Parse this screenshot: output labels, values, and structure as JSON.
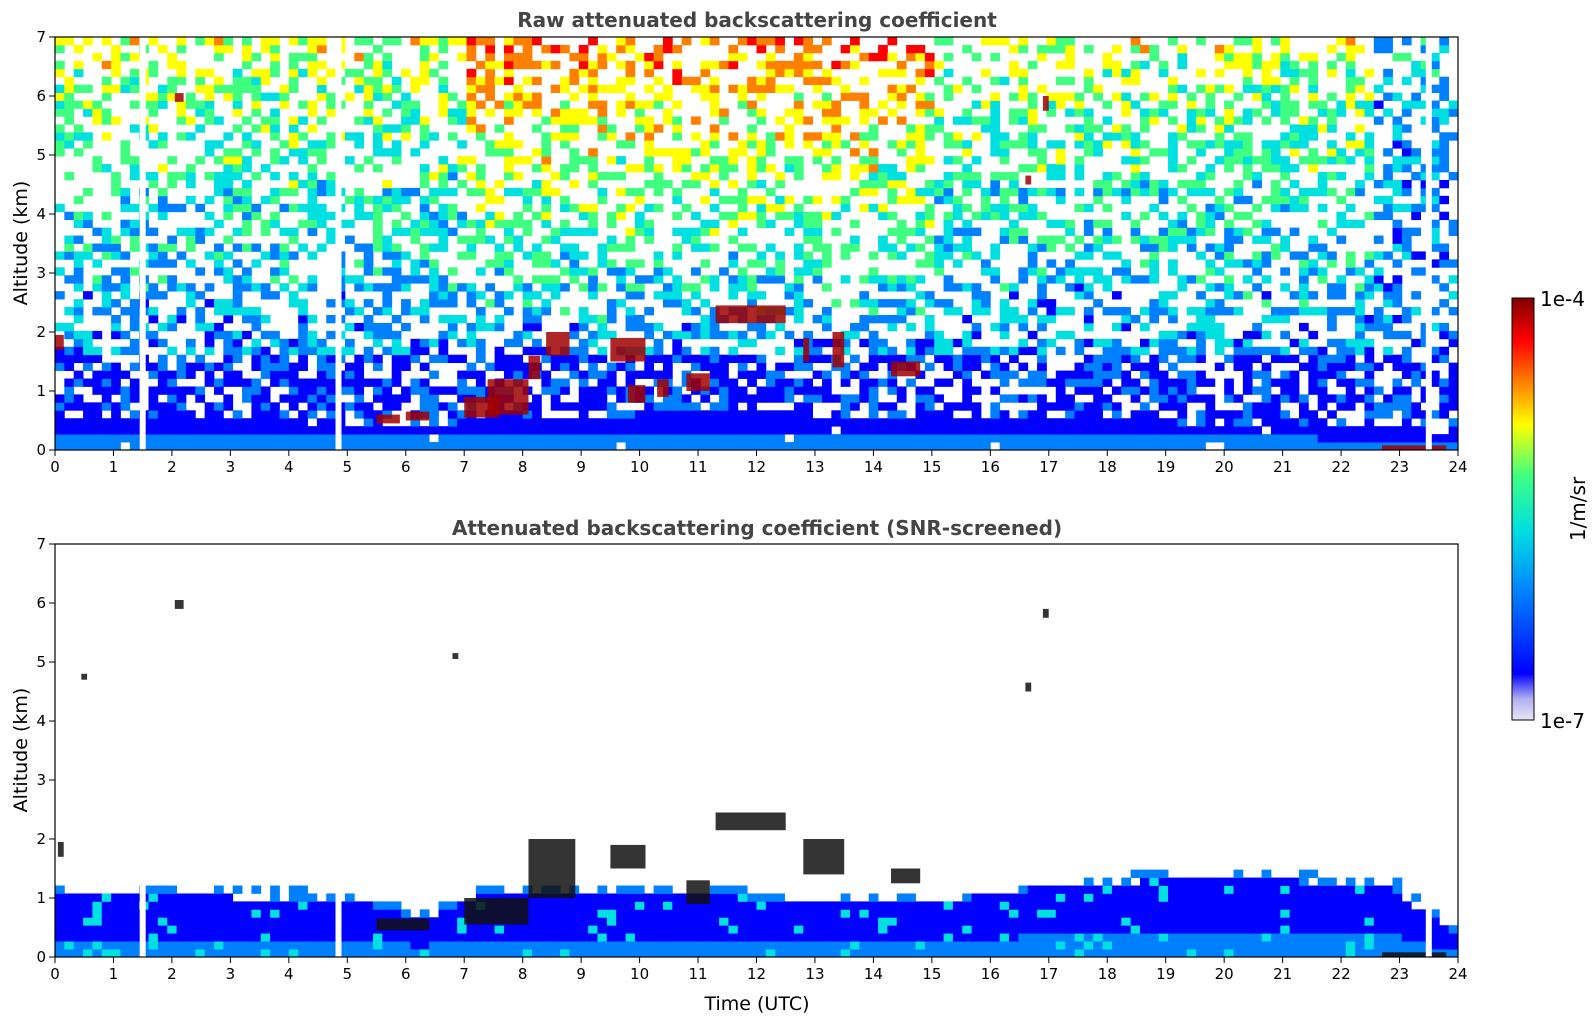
{
  "chart_data": [
    {
      "type": "heatmap",
      "title": "Raw attenuated backscattering coefficient",
      "xlabel": "",
      "ylabel": "Altitude (km)",
      "xlim": [
        0,
        24
      ],
      "ylim": [
        0,
        7
      ],
      "xticks": [
        "0",
        "1",
        "2",
        "3",
        "4",
        "5",
        "6",
        "7",
        "8",
        "9",
        "10",
        "11",
        "12",
        "13",
        "14",
        "15",
        "16",
        "17",
        "18",
        "19",
        "20",
        "21",
        "22",
        "23",
        "24"
      ],
      "yticks": [
        "0",
        "1",
        "2",
        "3",
        "4",
        "5",
        "6",
        "7"
      ],
      "gap_hours": [
        1.5,
        4.85,
        23.5
      ],
      "aerosol_top_km": [
        0.6,
        0.6,
        0.6,
        0.55,
        0.5,
        0.45,
        0.45,
        0.55,
        0.6,
        0.6,
        0.65,
        0.65,
        0.6,
        0.6,
        0.6,
        0.55,
        0.5,
        0.5,
        0.45,
        0.45,
        0.4,
        0.35,
        0.3
      ],
      "cloud_patches": [
        {
          "x": [
            0.0,
            0.15
          ],
          "y": [
            1.7,
            1.95
          ]
        },
        {
          "x": [
            2.05,
            2.2
          ],
          "y": [
            5.9,
            6.05
          ]
        },
        {
          "x": [
            5.5,
            5.9
          ],
          "y": [
            0.45,
            0.6
          ]
        },
        {
          "x": [
            6.0,
            6.4
          ],
          "y": [
            0.5,
            0.65
          ]
        },
        {
          "x": [
            7.0,
            7.6
          ],
          "y": [
            0.55,
            0.9
          ]
        },
        {
          "x": [
            7.4,
            8.1
          ],
          "y": [
            0.6,
            1.2
          ]
        },
        {
          "x": [
            8.1,
            8.3
          ],
          "y": [
            1.2,
            1.6
          ]
        },
        {
          "x": [
            8.4,
            8.8
          ],
          "y": [
            1.6,
            2.0
          ]
        },
        {
          "x": [
            9.5,
            10.1
          ],
          "y": [
            1.5,
            1.9
          ]
        },
        {
          "x": [
            9.8,
            10.1
          ],
          "y": [
            0.8,
            1.1
          ]
        },
        {
          "x": [
            10.3,
            10.5
          ],
          "y": [
            0.9,
            1.2
          ]
        },
        {
          "x": [
            10.8,
            11.2
          ],
          "y": [
            1.0,
            1.3
          ]
        },
        {
          "x": [
            11.3,
            12.5
          ],
          "y": [
            2.15,
            2.45
          ]
        },
        {
          "x": [
            12.8,
            12.9
          ],
          "y": [
            1.5,
            1.9
          ]
        },
        {
          "x": [
            13.3,
            13.5
          ],
          "y": [
            1.4,
            2.0
          ]
        },
        {
          "x": [
            14.3,
            14.8
          ],
          "y": [
            1.25,
            1.5
          ]
        },
        {
          "x": [
            16.6,
            16.7
          ],
          "y": [
            4.5,
            4.65
          ]
        },
        {
          "x": [
            16.9,
            17.0
          ],
          "y": [
            5.75,
            6.0
          ]
        },
        {
          "x": [
            22.7,
            23.8
          ],
          "y": [
            0.0,
            0.08
          ]
        }
      ],
      "colorbar": {
        "min_label": "1e-7",
        "max_label": "1e-4",
        "unit": "1/m/sr",
        "scale": "log"
      }
    },
    {
      "type": "heatmap",
      "title": "Attenuated backscattering coefficient (SNR-screened)",
      "xlabel": "Time (UTC)",
      "ylabel": "Altitude (km)",
      "xlim": [
        0,
        24
      ],
      "ylim": [
        0,
        7
      ],
      "xticks": [
        "0",
        "1",
        "2",
        "3",
        "4",
        "5",
        "6",
        "7",
        "8",
        "9",
        "10",
        "11",
        "12",
        "13",
        "14",
        "15",
        "16",
        "17",
        "18",
        "19",
        "20",
        "21",
        "22",
        "23",
        "24"
      ],
      "yticks": [
        "0",
        "1",
        "2",
        "3",
        "4",
        "5",
        "6",
        "7"
      ],
      "gap_hours": [
        1.5,
        4.85,
        23.5
      ],
      "mixed_layer_top_km": [
        1.1,
        1.1,
        1.05,
        1.0,
        1.0,
        0.95,
        0.6,
        1.05,
        1.1,
        1.05,
        1.1,
        1.05,
        0.9,
        0.95,
        0.95,
        1.0,
        1.15,
        1.2,
        1.3,
        1.3,
        1.3,
        1.25,
        1.2,
        0.35
      ],
      "cloud_patches": [
        {
          "x": [
            0.05,
            0.15
          ],
          "y": [
            1.7,
            1.95
          ]
        },
        {
          "x": [
            2.05,
            2.2
          ],
          "y": [
            5.9,
            6.05
          ]
        },
        {
          "x": [
            0.45,
            0.55
          ],
          "y": [
            4.7,
            4.8
          ]
        },
        {
          "x": [
            6.8,
            6.9
          ],
          "y": [
            5.05,
            5.15
          ]
        },
        {
          "x": [
            5.5,
            6.4
          ],
          "y": [
            0.45,
            0.65
          ]
        },
        {
          "x": [
            7.0,
            8.1
          ],
          "y": [
            0.55,
            1.0
          ]
        },
        {
          "x": [
            8.1,
            8.9
          ],
          "y": [
            1.0,
            2.0
          ]
        },
        {
          "x": [
            9.5,
            10.1
          ],
          "y": [
            1.5,
            1.9
          ]
        },
        {
          "x": [
            10.8,
            11.2
          ],
          "y": [
            0.9,
            1.3
          ]
        },
        {
          "x": [
            11.3,
            12.5
          ],
          "y": [
            2.15,
            2.45
          ]
        },
        {
          "x": [
            12.8,
            13.5
          ],
          "y": [
            1.4,
            2.0
          ]
        },
        {
          "x": [
            14.3,
            14.8
          ],
          "y": [
            1.25,
            1.5
          ]
        },
        {
          "x": [
            16.6,
            16.7
          ],
          "y": [
            4.5,
            4.65
          ]
        },
        {
          "x": [
            16.9,
            17.0
          ],
          "y": [
            5.75,
            5.9
          ]
        },
        {
          "x": [
            22.7,
            23.8
          ],
          "y": [
            0.0,
            0.08
          ]
        }
      ],
      "colorbar": {
        "min_label": "1e-7",
        "max_label": "1e-4",
        "unit": "1/m/sr",
        "scale": "log"
      }
    }
  ],
  "colorbar": {
    "max_label": "1e-4",
    "min_label": "1e-7",
    "unit_label": "1/m/sr",
    "colormap": "jet",
    "colors": [
      "#e6e6f5",
      "#b0b0f0",
      "#0000ff",
      "#0080ff",
      "#00e0e0",
      "#40ff80",
      "#ffff00",
      "#ff8000",
      "#ff0000",
      "#800000"
    ]
  }
}
